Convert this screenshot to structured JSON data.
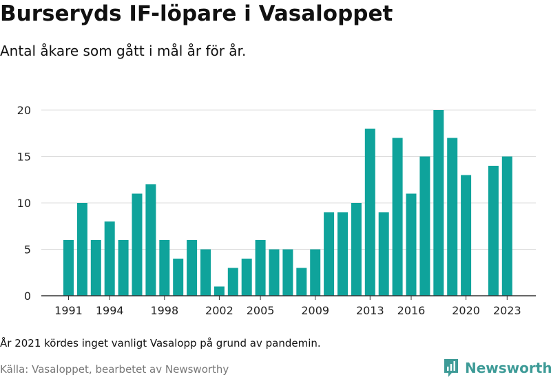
{
  "header": {
    "title": "Burseryds IF-löpare i Vasaloppet",
    "subtitle": "Antal åkare som gått i mål år för år."
  },
  "footer": {
    "note": "År 2021 kördes inget vanligt Vasalopp på grund av pandemin.",
    "source": "Källa: Vasaloppet, bearbetet av Newsworthy",
    "brand": "Newsworthy",
    "brand_icon": "newsworthy-logo-icon"
  },
  "colors": {
    "bar": "#0fa39b",
    "grid": "#dddddd",
    "axis": "#333333",
    "brand": "#3e9b97"
  },
  "chart_data": {
    "type": "bar",
    "x": [
      1991,
      1992,
      1993,
      1994,
      1995,
      1996,
      1997,
      1998,
      1999,
      2000,
      2001,
      2002,
      2003,
      2004,
      2005,
      2006,
      2007,
      2008,
      2009,
      2010,
      2011,
      2012,
      2013,
      2014,
      2015,
      2016,
      2017,
      2018,
      2019,
      2020,
      2021,
      2022,
      2023
    ],
    "values": [
      6,
      10,
      6,
      8,
      6,
      11,
      12,
      6,
      4,
      6,
      5,
      1,
      3,
      4,
      6,
      5,
      5,
      3,
      5,
      9,
      9,
      10,
      18,
      9,
      17,
      11,
      15,
      20,
      17,
      13,
      null,
      14,
      15
    ],
    "x_tick_labels": [
      "1991",
      "1994",
      "1998",
      "2002",
      "2005",
      "2009",
      "2013",
      "2016",
      "2020",
      "2023"
    ],
    "y_ticks": [
      0,
      5,
      10,
      15,
      20
    ],
    "ylim": [
      0,
      20
    ],
    "grid": true,
    "title": "Burseryds IF-löpare i Vasaloppet",
    "subtitle": "Antal åkare som gått i mål år för år.",
    "xlabel": "",
    "ylabel": ""
  }
}
